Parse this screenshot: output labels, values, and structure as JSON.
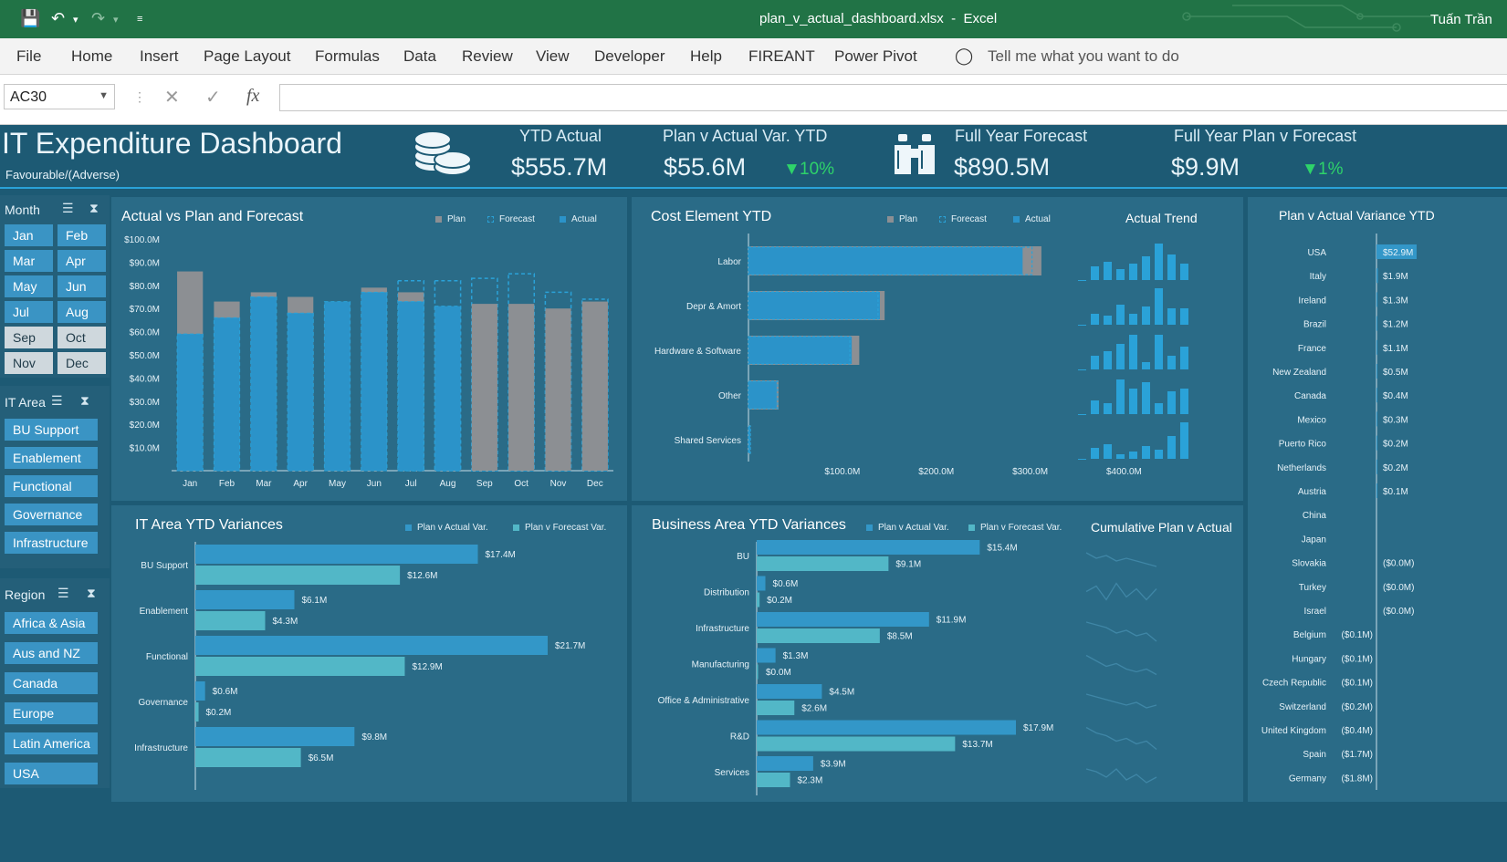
{
  "window": {
    "filename": "plan_v_actual_dashboard.xlsx",
    "app": "Excel",
    "separator": "-",
    "user": "Tuấn Trần"
  },
  "ribbon": {
    "tabs": [
      "File",
      "Home",
      "Insert",
      "Page Layout",
      "Formulas",
      "Data",
      "Review",
      "View",
      "Developer",
      "Help",
      "FIREANT",
      "Power Pivot"
    ],
    "tell_me": "Tell me what you want to do"
  },
  "formula_bar": {
    "name_box": "AC30",
    "value": ""
  },
  "dashboard": {
    "title": "IT Expenditure Dashboard",
    "subtitle": "Favourable/(Adverse)",
    "kpis": {
      "ytd_actual_label": "YTD Actual",
      "ytd_actual_value": "$555.7M",
      "pva_label": "Plan v Actual Var. YTD",
      "pva_value": "$55.6M",
      "pva_pct": "10%",
      "fyf_label": "Full Year Forecast",
      "fyf_value": "$890.5M",
      "fypf_label": "Full Year Plan v Forecast",
      "fypf_value": "$9.9M",
      "fypf_pct": "1%"
    },
    "month_slicer": {
      "label": "Month",
      "items": [
        {
          "label": "Jan",
          "selected": true
        },
        {
          "label": "Feb",
          "selected": true
        },
        {
          "label": "Mar",
          "selected": true
        },
        {
          "label": "Apr",
          "selected": true
        },
        {
          "label": "May",
          "selected": true
        },
        {
          "label": "Jun",
          "selected": true
        },
        {
          "label": "Jul",
          "selected": true
        },
        {
          "label": "Aug",
          "selected": true
        },
        {
          "label": "Sep",
          "selected": false
        },
        {
          "label": "Oct",
          "selected": false
        },
        {
          "label": "Nov",
          "selected": false
        },
        {
          "label": "Dec",
          "selected": false
        }
      ]
    },
    "itarea_slicer": {
      "label": "IT Area",
      "items": [
        "BU Support",
        "Enablement",
        "Functional",
        "Governance",
        "Infrastructure"
      ]
    },
    "region_slicer": {
      "label": "Region",
      "items": [
        "Africa & Asia",
        "Aus and NZ",
        "Canada",
        "Europe",
        "Latin America",
        "USA"
      ]
    }
  },
  "colors": {
    "plan": "#8c8f93",
    "forecast": "#2aa2d8",
    "actual": "#2b93c9",
    "actual_var": "#3397c8",
    "forecast_var": "#52b7c7",
    "positive": "#2ed36a"
  },
  "chart_data": [
    {
      "id": "avpf",
      "type": "bar",
      "title": "Actual vs Plan and Forecast",
      "categories": [
        "Jan",
        "Feb",
        "Mar",
        "Apr",
        "May",
        "Jun",
        "Jul",
        "Aug",
        "Sep",
        "Oct",
        "Nov",
        "Dec"
      ],
      "legend": [
        "Plan",
        "Forecast",
        "Actual"
      ],
      "series": [
        {
          "name": "Plan",
          "values": [
            86,
            73,
            77,
            75,
            72,
            79,
            77,
            70,
            72,
            72,
            70,
            73
          ]
        },
        {
          "name": "Forecast",
          "values": [
            null,
            null,
            null,
            null,
            null,
            null,
            82,
            82,
            83,
            85,
            77,
            74
          ]
        },
        {
          "name": "Actual",
          "values": [
            59,
            66,
            75,
            68,
            73,
            77,
            73,
            71,
            null,
            null,
            null,
            null
          ]
        }
      ],
      "ylim": [
        0,
        100
      ],
      "yticks": [
        "$10.0M",
        "$20.0M",
        "$30.0M",
        "$40.0M",
        "$50.0M",
        "$60.0M",
        "$70.0M",
        "$80.0M",
        "$90.0M",
        "$100.0M"
      ]
    },
    {
      "id": "cost",
      "type": "bar",
      "title": "Cost Element YTD",
      "orientation": "horizontal",
      "categories": [
        "Labor",
        "Depr & Amort",
        "Hardware & Software",
        "Other",
        "Shared Services"
      ],
      "legend": [
        "Plan",
        "Forecast",
        "Actual"
      ],
      "series": [
        {
          "name": "Plan",
          "values": [
            312,
            145,
            118,
            32,
            2
          ]
        },
        {
          "name": "Forecast",
          "values": [
            302,
            138,
            108,
            31,
            2
          ]
        },
        {
          "name": "Actual",
          "values": [
            292,
            140,
            110,
            30,
            2
          ]
        }
      ],
      "xlim": [
        0,
        420
      ],
      "xticks": [
        "$100.0M",
        "$200.0M",
        "$300.0M",
        "$400.0M"
      ]
    },
    {
      "id": "trend",
      "type": "bar",
      "title": "Actual Trend",
      "rows": [
        [
          0,
          15,
          20,
          12,
          18,
          26,
          40,
          28,
          18
        ],
        [
          0,
          12,
          10,
          22,
          12,
          20,
          40,
          18,
          18
        ],
        [
          0,
          15,
          20,
          28,
          38,
          8,
          38,
          15,
          25
        ],
        [
          0,
          15,
          12,
          38,
          28,
          35,
          12,
          25,
          28
        ],
        [
          0,
          12,
          16,
          5,
          8,
          14,
          10,
          25,
          40
        ]
      ]
    },
    {
      "id": "itarea",
      "type": "bar",
      "title": "IT Area YTD Variances",
      "orientation": "horizontal",
      "categories": [
        "BU Support",
        "Enablement",
        "Functional",
        "Governance",
        "Infrastructure"
      ],
      "legend": [
        "Plan v Actual Var.",
        "Plan v Forecast Var."
      ],
      "series": [
        {
          "name": "Plan v Actual Var.",
          "values": [
            17.4,
            6.1,
            21.7,
            0.6,
            9.8
          ],
          "labels": [
            "$17.4M",
            "$6.1M",
            "$21.7M",
            "$0.6M",
            "$9.8M"
          ]
        },
        {
          "name": "Plan v Forecast Var.",
          "values": [
            12.6,
            4.3,
            12.9,
            0.2,
            6.5
          ],
          "labels": [
            "$12.6M",
            "$4.3M",
            "$12.9M",
            "$0.2M",
            "$6.5M"
          ]
        }
      ]
    },
    {
      "id": "busarea",
      "type": "bar",
      "title": "Business Area YTD Variances",
      "orientation": "horizontal",
      "categories": [
        "BU",
        "Distribution",
        "Infrastructure",
        "Manufacturing",
        "Office & Administrative",
        "R&D",
        "Services"
      ],
      "legend": [
        "Plan v Actual Var.",
        "Plan v Forecast Var."
      ],
      "series": [
        {
          "name": "Plan v Actual Var.",
          "values": [
            15.4,
            0.6,
            11.9,
            1.3,
            4.5,
            17.9,
            3.9
          ],
          "labels": [
            "$15.4M",
            "$0.6M",
            "$11.9M",
            "$1.3M",
            "$4.5M",
            "$17.9M",
            "$3.9M"
          ]
        },
        {
          "name": "Plan v Forecast Var.",
          "values": [
            9.1,
            0.2,
            8.5,
            0.0,
            2.6,
            13.7,
            2.3
          ],
          "labels": [
            "$9.1M",
            "$0.2M",
            "$8.5M",
            "$0.0M",
            "$2.6M",
            "$13.7M",
            "$2.3M"
          ]
        }
      ]
    },
    {
      "id": "cumul",
      "type": "line",
      "title": "Cumulative Plan v Actual",
      "rows": [
        [
          6,
          4,
          5,
          3,
          4,
          3,
          2,
          1
        ],
        [
          5,
          7,
          2,
          8,
          3,
          6,
          2,
          6
        ],
        [
          7,
          6,
          5,
          3,
          4,
          2,
          3,
          0
        ],
        [
          8,
          6,
          4,
          5,
          3,
          2,
          3,
          1
        ],
        [
          7,
          6,
          5,
          4,
          3,
          4,
          2,
          3
        ],
        [
          8,
          6,
          5,
          3,
          4,
          2,
          3,
          0
        ],
        [
          6,
          5,
          3,
          6,
          2,
          4,
          1,
          3
        ]
      ]
    },
    {
      "id": "pvavar",
      "type": "bar",
      "title": "Plan v Actual Variance YTD",
      "orientation": "horizontal",
      "categories": [
        "USA",
        "Italy",
        "Ireland",
        "Brazil",
        "France",
        "New Zealand",
        "Canada",
        "Mexico",
        "Puerto Rico",
        "Netherlands",
        "Austria",
        "China",
        "Japan",
        "Slovakia",
        "Turkey",
        "Israel",
        "Belgium",
        "Hungary",
        "Czech Republic",
        "Switzerland",
        "United Kingdom",
        "Spain",
        "Germany"
      ],
      "values": [
        52.9,
        1.9,
        1.3,
        1.2,
        1.1,
        0.5,
        0.4,
        0.3,
        0.2,
        0.2,
        0.1,
        0,
        0,
        0,
        0,
        0,
        -0.1,
        -0.1,
        -0.1,
        -0.2,
        -0.4,
        -1.7,
        -1.8
      ],
      "labels": [
        "$52.9M",
        "$1.9M",
        "$1.3M",
        "$1.2M",
        "$1.1M",
        "$0.5M",
        "$0.4M",
        "$0.3M",
        "$0.2M",
        "$0.2M",
        "$0.1M",
        "",
        "",
        "($0.0M)",
        "($0.0M)",
        "($0.0M)",
        "($0.1M)",
        "($0.1M)",
        "($0.1M)",
        "($0.2M)",
        "($0.4M)",
        "($1.7M)",
        "($1.8M)"
      ]
    }
  ]
}
